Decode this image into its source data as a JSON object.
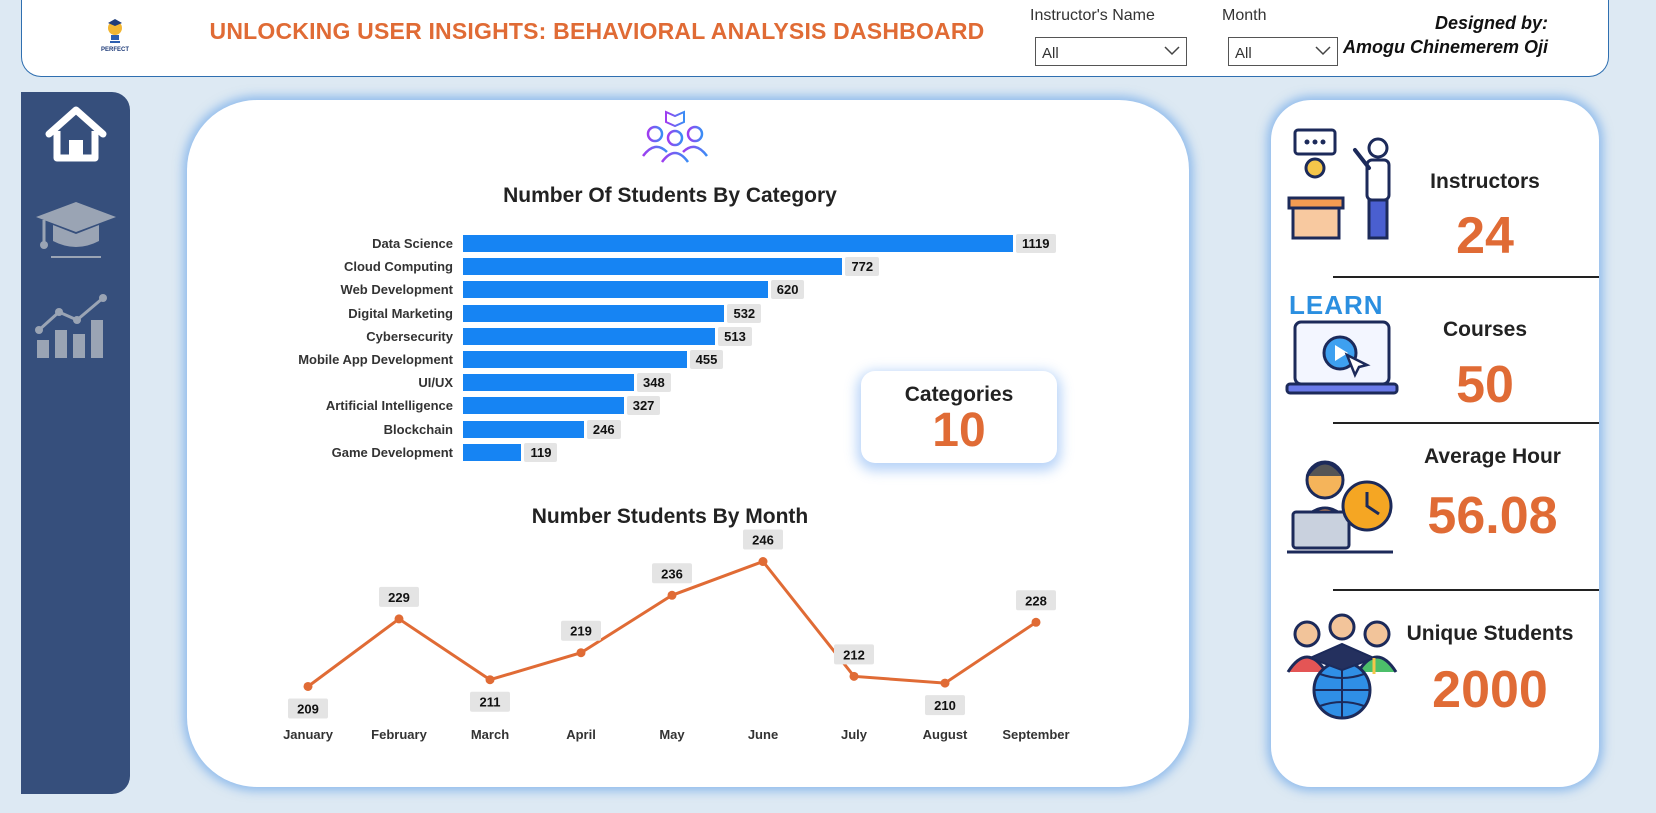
{
  "header": {
    "logo_text": "PERFECT",
    "title": "UNLOCKING USER INSIGHTS: BEHAVIORAL ANALYSIS DASHBOARD",
    "filters": [
      {
        "label": "Instructor's Name",
        "value": "All"
      },
      {
        "label": "Month",
        "value": "All"
      }
    ],
    "designed_by_label": "Designed by:",
    "designer_name": "Amogu Chinemerem Oji"
  },
  "sidebar": {
    "items": [
      {
        "icon": "home-icon"
      },
      {
        "icon": "graduation-cap-icon"
      },
      {
        "icon": "growth-chart-icon"
      }
    ]
  },
  "categories_card": {
    "label": "Categories",
    "value": "10"
  },
  "chart_data": [
    {
      "type": "bar",
      "orientation": "horizontal",
      "title": "Number Of Students By Category",
      "categories": [
        "Data Science",
        "Cloud Computing",
        "Web Development",
        "Digital Marketing",
        "Cybersecurity",
        "Mobile App Development",
        "UI/UX",
        "Artificial Intelligence",
        "Blockchain",
        "Game Development"
      ],
      "values": [
        1119,
        772,
        620,
        532,
        513,
        455,
        348,
        327,
        246,
        119
      ],
      "color": "#1684f3",
      "data_labels": true,
      "grid": false
    },
    {
      "type": "line",
      "title": "Number Students By Month",
      "categories": [
        "January",
        "February",
        "March",
        "April",
        "May",
        "June",
        "July",
        "August",
        "September"
      ],
      "values": [
        209,
        229,
        211,
        219,
        236,
        246,
        212,
        210,
        228
      ],
      "color": "#e06b35",
      "data_labels": true,
      "grid": false
    }
  ],
  "kpis": [
    {
      "label": "Instructors",
      "value": "24",
      "icon": "instructor-icon"
    },
    {
      "label": "Courses",
      "value": "50",
      "icon": "learn-laptop-icon"
    },
    {
      "label": "Average Hour",
      "value": "56.08",
      "icon": "student-clock-icon"
    },
    {
      "label": "Unique Students",
      "value": "2000",
      "icon": "students-globe-icon"
    }
  ],
  "colors": {
    "accent": "#e06b35",
    "bar": "#1684f3",
    "sidebar": "#364f7c",
    "background": "#dde9f3"
  }
}
